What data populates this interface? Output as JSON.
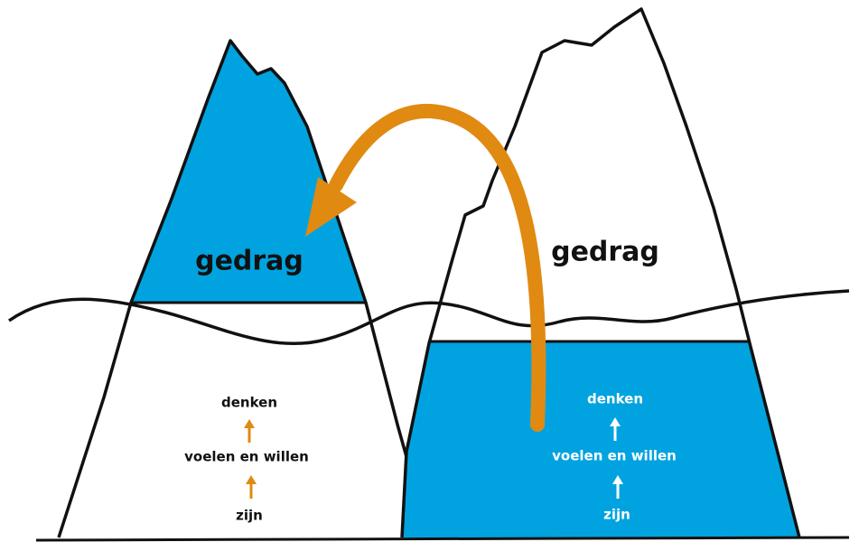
{
  "left_iceberg": {
    "label": "gedrag",
    "levels": [
      "denken",
      "voelen en willen",
      "zijn"
    ]
  },
  "right_iceberg": {
    "label": "gedrag",
    "levels": [
      "denken",
      "voelen en willen",
      "zijn"
    ]
  }
}
